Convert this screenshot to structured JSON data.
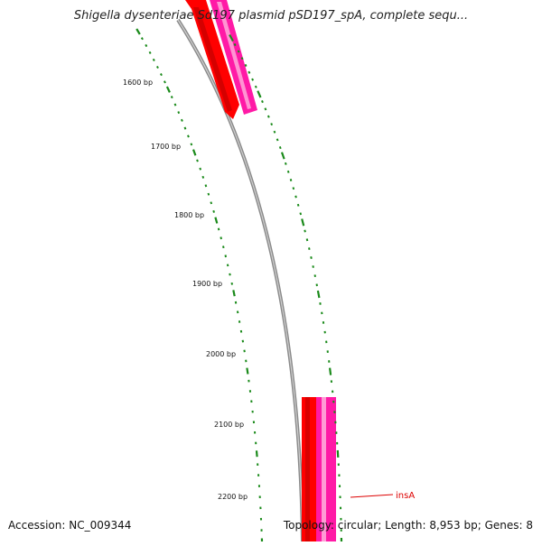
{
  "header": {
    "title": "Shigella dysenteriae Sd197 plasmid pSD197_spA, complete sequ..."
  },
  "footer": {
    "accession": "Accession: NC_009344",
    "summary": "Topology: circular; Length: 8,953 bp; Genes: 8"
  },
  "colors": {
    "backbone": "#8a8a8a",
    "tick": "#1a8a1a",
    "gene_forward": "#ff0000",
    "gene_reverse": "#ff1aa6",
    "label_line": "#dd0000"
  },
  "scale": {
    "labels": [
      "1600 bp",
      "1700 bp",
      "1800 bp",
      "1900 bp",
      "2000 bp",
      "2100 bp",
      "2200 bp"
    ]
  },
  "features": {
    "gene_label": "insA"
  }
}
